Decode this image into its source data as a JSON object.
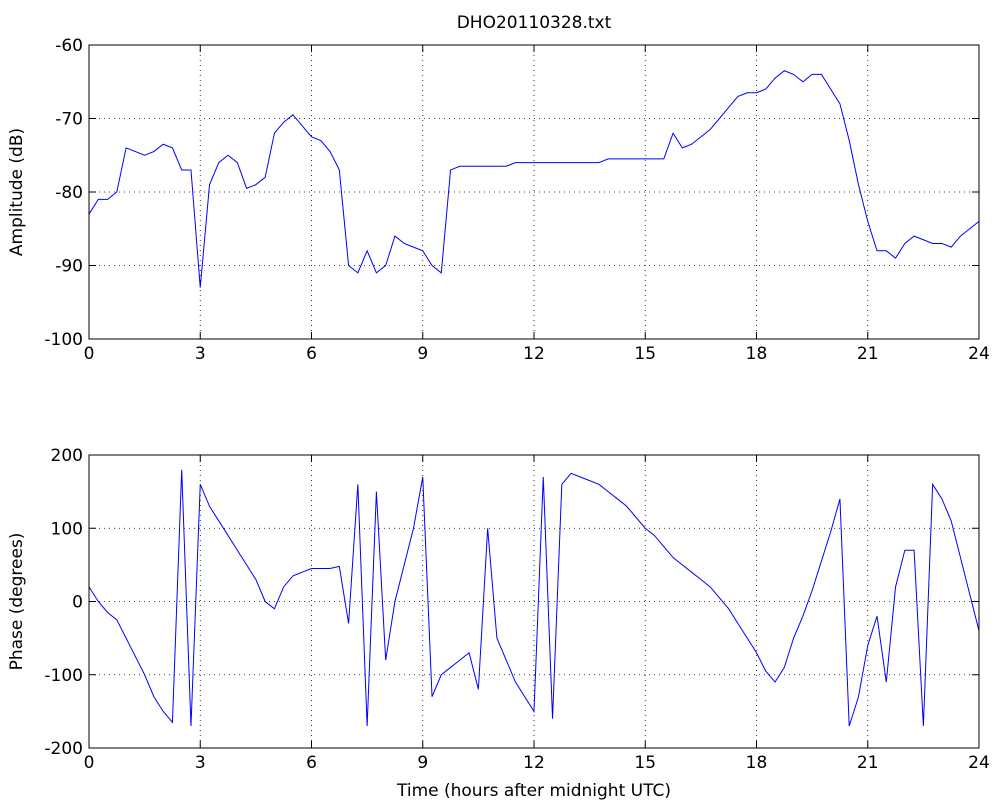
{
  "chart_data": [
    {
      "type": "line",
      "title": "DHO20110328.txt",
      "ylabel": "Amplitude (dB)",
      "x": [
        0,
        0.25,
        0.5,
        0.75,
        1,
        1.25,
        1.5,
        1.75,
        2,
        2.25,
        2.5,
        2.75,
        3,
        3.25,
        3.5,
        3.75,
        4,
        4.25,
        4.5,
        4.75,
        5,
        5.25,
        5.5,
        5.75,
        6,
        6.25,
        6.5,
        6.75,
        7,
        7.25,
        7.5,
        7.75,
        8,
        8.25,
        8.5,
        8.75,
        9,
        9.25,
        9.5,
        9.75,
        10,
        10.25,
        10.5,
        10.75,
        11,
        11.25,
        11.5,
        11.75,
        12,
        12.25,
        12.5,
        12.75,
        13,
        13.25,
        13.5,
        13.75,
        14,
        14.25,
        14.5,
        14.75,
        15,
        15.25,
        15.5,
        15.75,
        16,
        16.25,
        16.5,
        16.75,
        17,
        17.25,
        17.5,
        17.75,
        18,
        18.25,
        18.5,
        18.75,
        19,
        19.25,
        19.5,
        19.75,
        20,
        20.25,
        20.5,
        20.75,
        21,
        21.25,
        21.5,
        21.75,
        22,
        22.25,
        22.5,
        22.75,
        23,
        23.25,
        23.5,
        23.75,
        24
      ],
      "values": [
        -83,
        -81,
        -81,
        -80,
        -74,
        -74.5,
        -75,
        -74.5,
        -73.5,
        -74,
        -77,
        -77,
        -93,
        -79,
        -76,
        -75,
        -76,
        -79.5,
        -79,
        -78,
        -72,
        -70.5,
        -69.5,
        -71,
        -72.5,
        -73,
        -74.5,
        -77,
        -90,
        -91,
        -88,
        -91,
        -90,
        -86,
        -87,
        -87.5,
        -88,
        -90,
        -91,
        -77,
        -76.5,
        -76.5,
        -76.5,
        -76.5,
        -76.5,
        -76.5,
        -76,
        -76,
        -76,
        -76,
        -76,
        -76,
        -76,
        -76,
        -76,
        -76,
        -75.5,
        -75.5,
        -75.5,
        -75.5,
        -75.5,
        -75.5,
        -75.5,
        -72,
        -74,
        -73.5,
        -72.5,
        -71.5,
        -70,
        -68.5,
        -67,
        -66.5,
        -66.5,
        -66,
        -64.5,
        -63.5,
        -64,
        -65,
        -64,
        -64,
        -66,
        -68,
        -73,
        -79,
        -84,
        -88,
        -88,
        -89,
        -87,
        -86,
        -86.5,
        -87,
        -87,
        -87.5,
        -86,
        -85,
        -84
      ],
      "color": "#0000ff",
      "xlim": [
        0,
        24
      ],
      "ylim": [
        -100,
        -60
      ],
      "xticks": [
        0,
        3,
        6,
        9,
        12,
        15,
        18,
        21,
        24
      ],
      "yticks": [
        -100,
        -90,
        -80,
        -70,
        -60
      ],
      "grid": true
    },
    {
      "type": "line",
      "ylabel": "Phase (degrees)",
      "xlabel": "Time (hours after midnight UTC)",
      "x": [
        0,
        0.25,
        0.5,
        0.75,
        1,
        1.25,
        1.5,
        1.75,
        2,
        2.25,
        2.5,
        2.75,
        3,
        3.25,
        3.5,
        3.75,
        4,
        4.25,
        4.5,
        4.75,
        5,
        5.25,
        5.5,
        5.75,
        6,
        6.25,
        6.5,
        6.75,
        7,
        7.25,
        7.5,
        7.75,
        8,
        8.25,
        8.5,
        8.75,
        9,
        9.25,
        9.5,
        9.75,
        10,
        10.25,
        10.5,
        10.75,
        11,
        11.25,
        11.5,
        11.75,
        12,
        12.25,
        12.5,
        12.75,
        13,
        13.25,
        13.5,
        13.75,
        14,
        14.25,
        14.5,
        14.75,
        15,
        15.25,
        15.5,
        15.75,
        16,
        16.25,
        16.5,
        16.75,
        17,
        17.25,
        17.5,
        17.75,
        18,
        18.25,
        18.5,
        18.75,
        19,
        19.25,
        19.5,
        19.75,
        20,
        20.25,
        20.5,
        20.75,
        21,
        21.25,
        21.5,
        21.75,
        22,
        22.25,
        22.5,
        22.75,
        23,
        23.25,
        23.5,
        23.75,
        24
      ],
      "values": [
        20,
        0,
        -15,
        -25,
        -50,
        -75,
        -100,
        -130,
        -150,
        -165,
        180,
        -170,
        160,
        130,
        110,
        90,
        70,
        50,
        30,
        0,
        -10,
        20,
        35,
        40,
        45,
        45,
        45,
        48,
        -30,
        160,
        -170,
        150,
        -80,
        0,
        50,
        100,
        170,
        -130,
        -100,
        -90,
        -80,
        -70,
        -120,
        100,
        -50,
        -80,
        -110,
        -130,
        -150,
        170,
        -160,
        160,
        175,
        170,
        165,
        160,
        150,
        140,
        130,
        115,
        100,
        90,
        75,
        60,
        50,
        40,
        30,
        20,
        5,
        -10,
        -30,
        -50,
        -70,
        -95,
        -110,
        -90,
        -50,
        -20,
        15,
        55,
        95,
        140,
        -170,
        -130,
        -60,
        -20,
        -110,
        20,
        70,
        70,
        -170,
        160,
        140,
        110,
        60,
        10,
        -40
      ],
      "color": "#0000ff",
      "xlim": [
        0,
        24
      ],
      "ylim": [
        -200,
        200
      ],
      "xticks": [
        0,
        3,
        6,
        9,
        12,
        15,
        18,
        21,
        24
      ],
      "yticks": [
        -200,
        -100,
        0,
        100,
        200
      ],
      "grid": true
    }
  ]
}
